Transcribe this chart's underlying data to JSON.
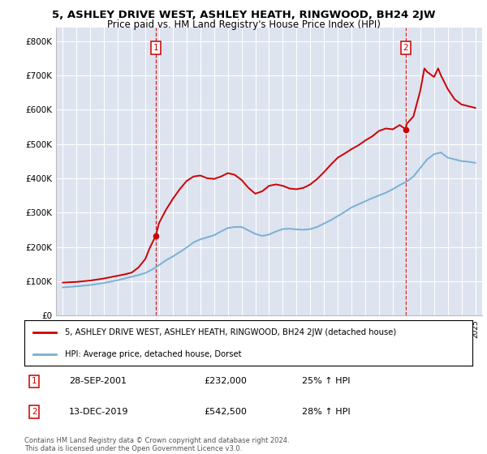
{
  "title_line1": "5, ASHLEY DRIVE WEST, ASHLEY HEATH, RINGWOOD, BH24 2JW",
  "title_line2": "Price paid vs. HM Land Registry's House Price Index (HPI)",
  "ylabel_ticks": [
    "£0",
    "£100K",
    "£200K",
    "£300K",
    "£400K",
    "£500K",
    "£600K",
    "£700K",
    "£800K"
  ],
  "ytick_values": [
    0,
    100000,
    200000,
    300000,
    400000,
    500000,
    600000,
    700000,
    800000
  ],
  "ylim": [
    0,
    840000
  ],
  "xlim_start": 1994.5,
  "xlim_end": 2025.5,
  "plot_bg_color": "#dde3ef",
  "grid_color": "#ffffff",
  "red_line_color": "#cc0000",
  "blue_line_color": "#7ab0d4",
  "sale1_x": 2001.75,
  "sale1_y": 232000,
  "sale2_x": 2019.95,
  "sale2_y": 542500,
  "legend_red": "5, ASHLEY DRIVE WEST, ASHLEY HEATH, RINGWOOD, BH24 2JW (detached house)",
  "legend_blue": "HPI: Average price, detached house, Dorset",
  "table_entries": [
    {
      "num": 1,
      "date": "28-SEP-2001",
      "price": "£232,000",
      "hpi": "25% ↑ HPI"
    },
    {
      "num": 2,
      "date": "13-DEC-2019",
      "price": "£542,500",
      "hpi": "28% ↑ HPI"
    }
  ],
  "footnote": "Contains HM Land Registry data © Crown copyright and database right 2024.\nThis data is licensed under the Open Government Licence v3.0.",
  "hpi_years": [
    1995,
    1995.5,
    1996,
    1996.5,
    1997,
    1997.5,
    1998,
    1998.5,
    1999,
    1999.5,
    2000,
    2000.5,
    2001,
    2001.5,
    2002,
    2002.5,
    2003,
    2003.5,
    2004,
    2004.5,
    2005,
    2005.5,
    2006,
    2006.5,
    2007,
    2007.5,
    2008,
    2008.5,
    2009,
    2009.5,
    2010,
    2010.5,
    2011,
    2011.5,
    2012,
    2012.5,
    2013,
    2013.5,
    2014,
    2014.5,
    2015,
    2015.5,
    2016,
    2016.5,
    2017,
    2017.5,
    2018,
    2018.5,
    2019,
    2019.5,
    2020,
    2020.5,
    2021,
    2021.5,
    2022,
    2022.5,
    2023,
    2023.5,
    2024,
    2024.5,
    2025
  ],
  "hpi_values": [
    82000,
    83500,
    85000,
    87000,
    89000,
    92000,
    95000,
    99000,
    103000,
    108000,
    113000,
    118000,
    124000,
    134000,
    147000,
    161000,
    172000,
    185000,
    198000,
    213000,
    222000,
    228000,
    234000,
    245000,
    255000,
    258000,
    258000,
    248000,
    238000,
    232000,
    236000,
    245000,
    252000,
    253000,
    251000,
    250000,
    252000,
    258000,
    268000,
    278000,
    290000,
    302000,
    315000,
    324000,
    333000,
    342000,
    350000,
    358000,
    368000,
    380000,
    390000,
    405000,
    430000,
    455000,
    470000,
    475000,
    460000,
    455000,
    450000,
    448000,
    445000
  ],
  "house_years": [
    1995,
    1995.5,
    1996,
    1996.5,
    1997,
    1997.5,
    1998,
    1998.5,
    1999,
    1999.5,
    2000,
    2000.5,
    2001,
    2001.3,
    2001.75,
    2002,
    2002.5,
    2003,
    2003.5,
    2004,
    2004.5,
    2005,
    2005.5,
    2006,
    2006.5,
    2007,
    2007.5,
    2008,
    2008.5,
    2009,
    2009.5,
    2010,
    2010.5,
    2011,
    2011.5,
    2012,
    2012.5,
    2013,
    2013.5,
    2014,
    2014.5,
    2015,
    2015.5,
    2016,
    2016.5,
    2017,
    2017.5,
    2018,
    2018.5,
    2019,
    2019.5,
    2019.95,
    2020,
    2020.5,
    2021,
    2021.3,
    2021.5,
    2022,
    2022.3,
    2022.5,
    2023,
    2023.5,
    2024,
    2024.5,
    2025
  ],
  "house_values": [
    96000,
    97000,
    98000,
    100000,
    102000,
    105000,
    108000,
    112000,
    116000,
    120000,
    125000,
    140000,
    165000,
    195000,
    232000,
    270000,
    308000,
    340000,
    368000,
    392000,
    405000,
    408000,
    400000,
    398000,
    405000,
    415000,
    410000,
    395000,
    372000,
    355000,
    362000,
    378000,
    382000,
    378000,
    370000,
    368000,
    372000,
    382000,
    398000,
    418000,
    440000,
    460000,
    472000,
    485000,
    496000,
    510000,
    522000,
    538000,
    545000,
    542500,
    555000,
    542500,
    558000,
    580000,
    655000,
    720000,
    710000,
    695000,
    720000,
    700000,
    660000,
    630000,
    615000,
    610000,
    605000
  ]
}
